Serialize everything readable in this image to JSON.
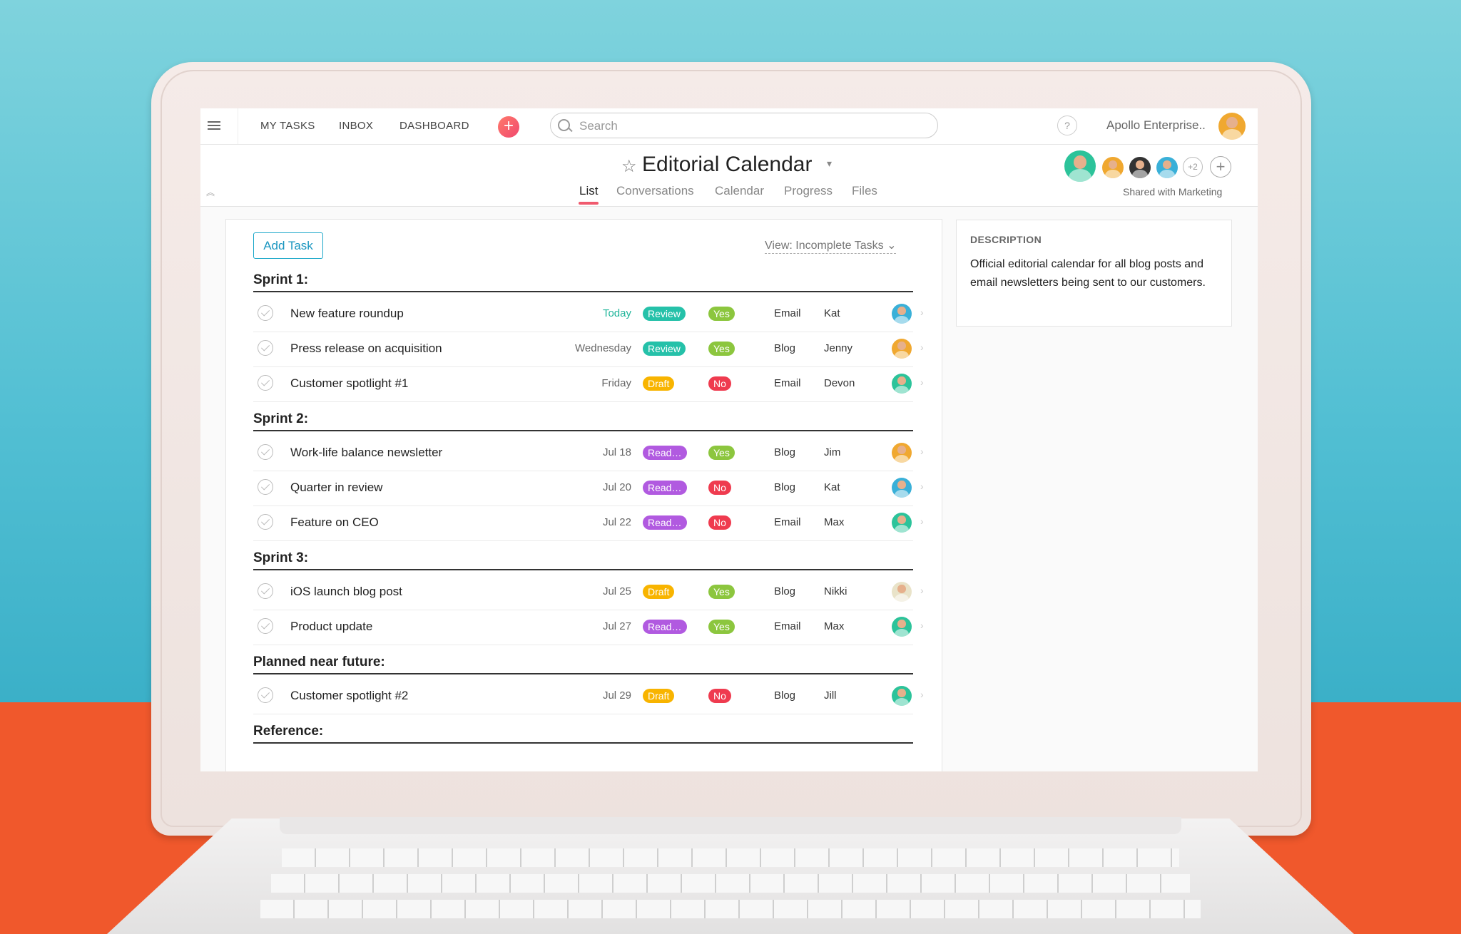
{
  "topbar": {
    "nav": [
      "MY TASKS",
      "INBOX",
      "DASHBOARD"
    ],
    "search_placeholder": "Search",
    "help": "?",
    "org": "Apollo Enterprise.."
  },
  "project": {
    "title": "Editorial Calendar",
    "tabs": [
      "List",
      "Conversations",
      "Calendar",
      "Progress",
      "Files"
    ],
    "active_tab": "List",
    "members_more": "+2",
    "shared_with": "Shared with Marketing"
  },
  "list": {
    "add_task_label": "Add Task",
    "view_filter": "View: Incomplete Tasks",
    "sections": [
      {
        "title": "Sprint 1:",
        "tasks": [
          {
            "name": "New feature roundup",
            "due": "Today",
            "status": "Review",
            "approved": "Yes",
            "channel": "Email",
            "assignee": "Kat"
          },
          {
            "name": "Press release on acquisition",
            "due": "Wednesday",
            "status": "Review",
            "approved": "Yes",
            "channel": "Blog",
            "assignee": "Jenny"
          },
          {
            "name": "Customer spotlight #1",
            "due": "Friday",
            "status": "Draft",
            "approved": "No",
            "channel": "Email",
            "assignee": "Devon"
          }
        ]
      },
      {
        "title": "Sprint 2:",
        "tasks": [
          {
            "name": "Work-life balance newsletter",
            "due": "Jul 18",
            "status": "Ready...",
            "approved": "Yes",
            "channel": "Blog",
            "assignee": "Jim"
          },
          {
            "name": "Quarter in review",
            "due": "Jul 20",
            "status": "Ready...",
            "approved": "No",
            "channel": "Blog",
            "assignee": "Kat"
          },
          {
            "name": "Feature on CEO",
            "due": "Jul 22",
            "status": "Ready...",
            "approved": "No",
            "channel": "Email",
            "assignee": "Max"
          }
        ]
      },
      {
        "title": "Sprint 3:",
        "tasks": [
          {
            "name": "iOS launch blog post",
            "due": "Jul 25",
            "status": "Draft",
            "approved": "Yes",
            "channel": "Blog",
            "assignee": "Nikki"
          },
          {
            "name": "Product update",
            "due": "Jul 27",
            "status": "Ready...",
            "approved": "Yes",
            "channel": "Email",
            "assignee": "Max"
          }
        ]
      },
      {
        "title": "Planned near future:",
        "tasks": [
          {
            "name": "Customer spotlight #2",
            "due": "Jul 29",
            "status": "Draft",
            "approved": "No",
            "channel": "Blog",
            "assignee": "Jill"
          }
        ]
      },
      {
        "title": "Reference:",
        "tasks": []
      }
    ]
  },
  "description": {
    "heading": "DESCRIPTION",
    "text": "Official editorial calendar for all blog posts and email newsletters being sent to our customers."
  },
  "colors": {
    "review": "#25c1a9",
    "draft": "#f8b400",
    "ready": "#b15ae0",
    "yes": "#8cc63e",
    "no": "#ef3b4f",
    "accent": "#f05a6e",
    "link": "#1a96c0"
  }
}
